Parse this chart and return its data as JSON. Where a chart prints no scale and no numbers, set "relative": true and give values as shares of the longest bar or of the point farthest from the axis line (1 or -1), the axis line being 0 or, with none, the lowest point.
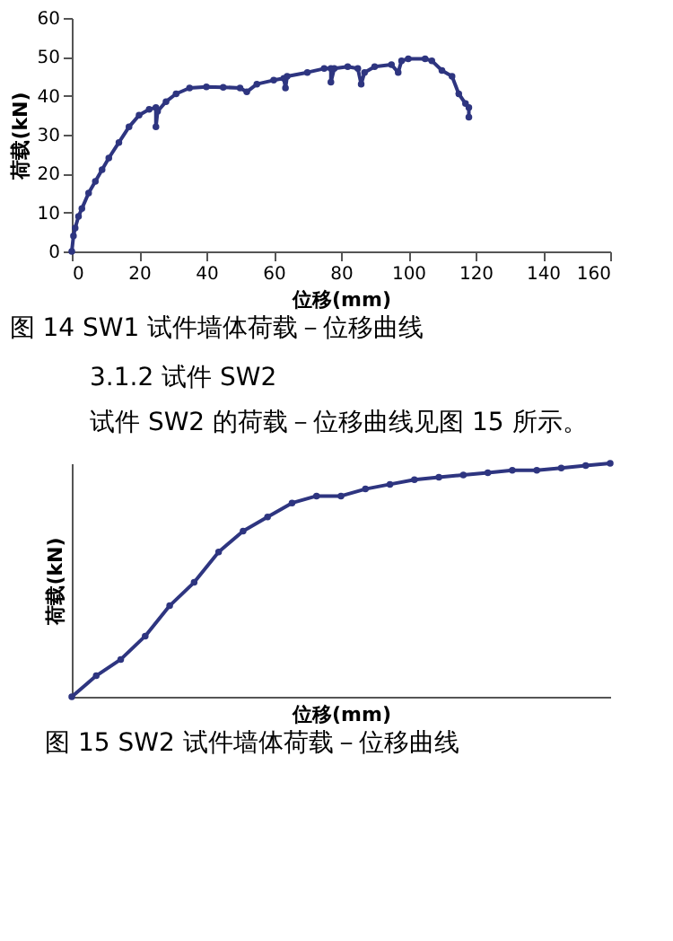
{
  "chart_data": [
    {
      "type": "line",
      "title": "图 14 SW1 试件墙体荷载－位移曲线",
      "xlabel": "位移(mm)",
      "ylabel": "荷载(kN)",
      "xlim": [
        0,
        160
      ],
      "ylim": [
        0,
        60
      ],
      "xticks": [
        0,
        20,
        40,
        60,
        80,
        100,
        120,
        140,
        160
      ],
      "yticks": [
        0,
        10,
        20,
        30,
        40,
        50,
        60
      ],
      "marker": "circle",
      "grid": false,
      "series": [
        {
          "color": "#2e3580",
          "x": [
            0,
            0.5,
            1,
            2,
            3,
            5,
            7,
            9,
            11,
            14,
            17,
            20,
            23,
            25,
            25,
            25.5,
            28,
            31,
            35,
            40,
            45,
            50,
            52,
            55,
            60,
            63,
            63.5,
            64,
            70,
            75,
            77,
            77,
            78,
            82,
            85,
            86,
            87,
            90,
            95,
            97,
            98,
            100,
            105,
            107,
            110,
            113,
            115,
            117,
            118,
            118
          ],
          "values": [
            0,
            4,
            6,
            9,
            11,
            15,
            18,
            21,
            24,
            28,
            32,
            35,
            36.5,
            37,
            32,
            36,
            38.5,
            40.5,
            42,
            42.3,
            42.2,
            42,
            41,
            43,
            44,
            44.5,
            42,
            45,
            46,
            47,
            47,
            43.5,
            47,
            47.5,
            47,
            43,
            46,
            47.5,
            48,
            46,
            49,
            49.5,
            49.5,
            49,
            46.5,
            45,
            40.5,
            38,
            37,
            34.5
          ]
        }
      ]
    },
    {
      "type": "line",
      "relative": true,
      "title": "图 15 SW2 试件墙体荷载－位移曲线",
      "xlabel": "位移(mm)",
      "ylabel": "荷载(kN)",
      "marker": "circle",
      "grid": false,
      "annotations": [
        "3.1.2 试件 SW2",
        "试件 SW2 的荷载－位移曲线见图 15 所示。"
      ],
      "categories": [
        null,
        null,
        null,
        null,
        null,
        null,
        null,
        null,
        null,
        null,
        null,
        null,
        null,
        null,
        null,
        null,
        null,
        null,
        null,
        null,
        null,
        null,
        null
      ],
      "series": [
        {
          "color": "#2e3580",
          "values": [
            0,
            0.09,
            0.16,
            0.26,
            0.39,
            0.49,
            0.62,
            0.71,
            0.77,
            0.83,
            0.86,
            0.86,
            0.89,
            0.91,
            0.93,
            0.94,
            0.95,
            0.96,
            0.97,
            0.97,
            0.98,
            0.99,
            1
          ]
        }
      ]
    }
  ]
}
